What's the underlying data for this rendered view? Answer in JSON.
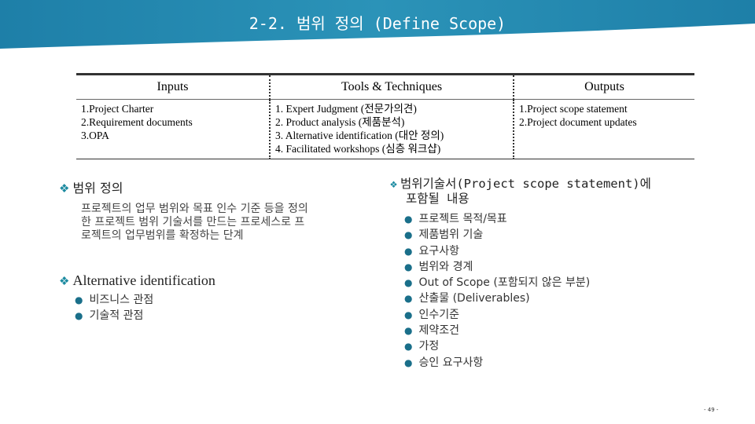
{
  "header": {
    "title": "2-2. 범위 정의 (Define Scope)"
  },
  "table": {
    "columns": [
      {
        "header": "Inputs",
        "items": [
          "1.Project Charter",
          "2.Requirement documents",
          "3.OPA"
        ]
      },
      {
        "header": "Tools & Techniques",
        "items": [
          "1. Expert Judgment (전문가의견)",
          "2. Product analysis (제품분석)",
          "3. Alternative identification (대안 정의)",
          "4. Facilitated workshops (심층 워크샵)"
        ]
      },
      {
        "header": "Outputs",
        "items": [
          "1.Project scope statement",
          "2.Project document updates"
        ]
      }
    ]
  },
  "left": {
    "definition": {
      "heading": "범위 정의",
      "lines": [
        "프로젝트의 업무 범위와 목표 인수 기준 등을 정의",
        "한 프로젝트 범위 기술서를 만드는 프로세스로 프",
        "로젝트의 업무범위를 확정하는 단계"
      ]
    },
    "alternative": {
      "heading": "Alternative identification",
      "items": [
        "비즈니스 관점",
        "기술적 관점"
      ]
    }
  },
  "right": {
    "heading_lines": [
      "범위기술서(Project scope statement)에",
      "포함될 내용"
    ],
    "items": [
      "프로젝트 목적/목표",
      "제품범위 기술",
      "요구사항",
      "범위와 경계",
      "Out of Scope (포함되지 않은 부분)",
      "산출물 (Deliverables)",
      "인수기준",
      "제약조건",
      "가정",
      "승인 요구사항"
    ]
  },
  "footer": {
    "page": "- 49 -"
  }
}
